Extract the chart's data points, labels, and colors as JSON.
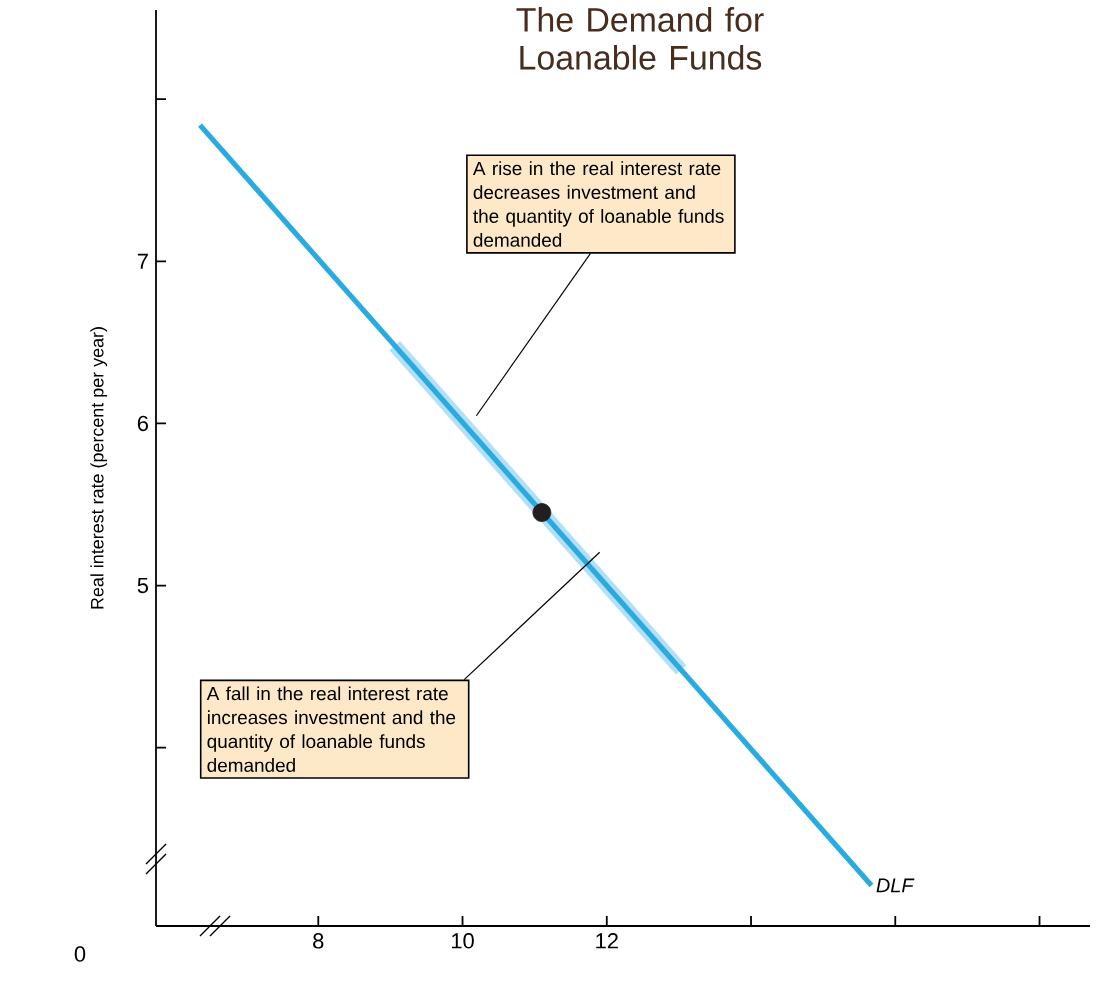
{
  "chart_data": {
    "type": "line",
    "title": "The Demand for Loanable Funds",
    "ylabel": "Real interest rate (percent per year)",
    "xlim": [
      5.75,
      18.7
    ],
    "ylim": [
      2.9,
      8.55
    ],
    "xticks": [
      8,
      10,
      12,
      {
        "value": 14,
        "label": null
      },
      {
        "value": 16,
        "label": null
      },
      {
        "value": 18,
        "label": null
      }
    ],
    "yticks": [
      {
        "value": 4,
        "label": null
      },
      5,
      6,
      7,
      {
        "value": 8,
        "label": null
      }
    ],
    "grid": false,
    "legend": false,
    "series": [
      {
        "color": "#b3e0f7",
        "x": [
          9.06,
          13.03
        ],
        "values": [
          6.48,
          4.48
        ]
      },
      {
        "name": "DLF",
        "color": "#29abe2",
        "x": [
          6.36,
          15.67
        ],
        "values": [
          7.84,
          3.15
        ]
      },
      {
        "type": "scatter",
        "marker": "circle",
        "color": "#231f20",
        "x": [
          11.1
        ],
        "values": [
          5.45
        ]
      }
    ],
    "annotations": [
      "A rise in the real interest rate decreases investment and the quantity of loanable funds demanded",
      "A fall in the real interest rate increases investment and the quantity of loanable funds demanded",
      "0"
    ]
  }
}
